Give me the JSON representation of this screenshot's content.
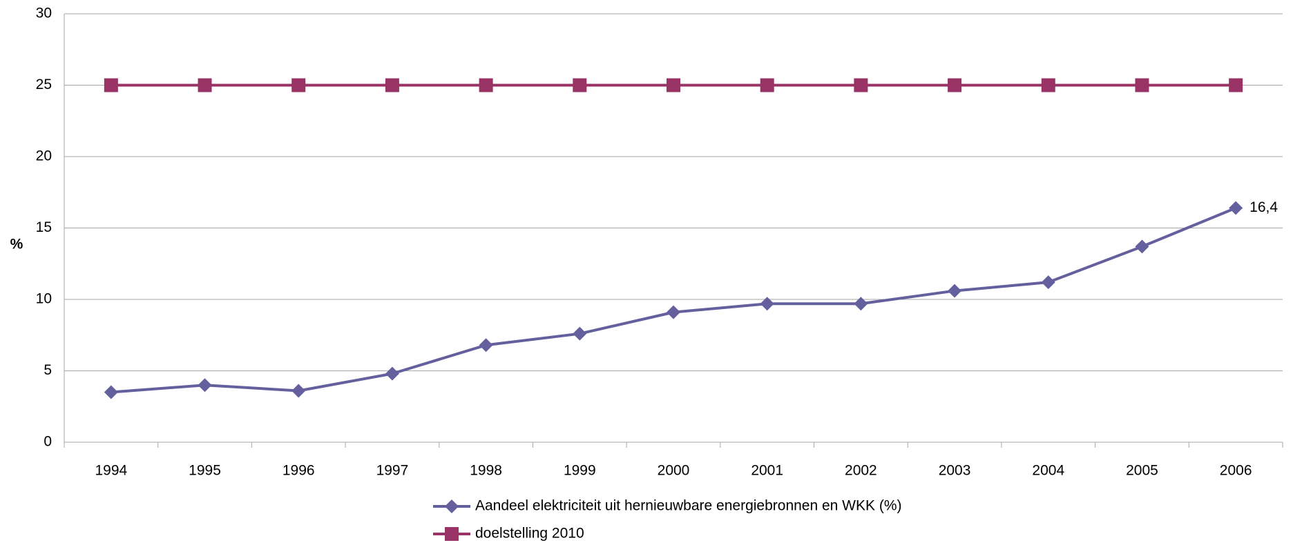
{
  "chart_data": {
    "type": "line",
    "y_label": "%",
    "categories": [
      "1994",
      "1995",
      "1996",
      "1997",
      "1998",
      "1999",
      "2000",
      "2001",
      "2002",
      "2003",
      "2004",
      "2005",
      "2006"
    ],
    "series": [
      {
        "name": "Aandeel elektriciteit uit hernieuwbare energiebronnen en WKK (%)",
        "color": "#64609e",
        "marker": "diamond",
        "values": [
          3.5,
          4.0,
          3.6,
          4.8,
          6.8,
          7.6,
          9.1,
          9.7,
          9.7,
          10.6,
          11.2,
          13.7,
          16.4
        ],
        "value_labels": [
          null,
          null,
          null,
          null,
          null,
          null,
          null,
          null,
          null,
          null,
          null,
          null,
          "16,4"
        ]
      },
      {
        "name": "doelstelling 2010",
        "color": "#993366",
        "marker": "square",
        "values": [
          25,
          25,
          25,
          25,
          25,
          25,
          25,
          25,
          25,
          25,
          25,
          25,
          25
        ]
      }
    ],
    "ylim": [
      0,
      30
    ],
    "yticks": [
      0,
      5,
      10,
      15,
      20,
      25,
      30
    ],
    "grid": true,
    "legend": "bottom"
  }
}
